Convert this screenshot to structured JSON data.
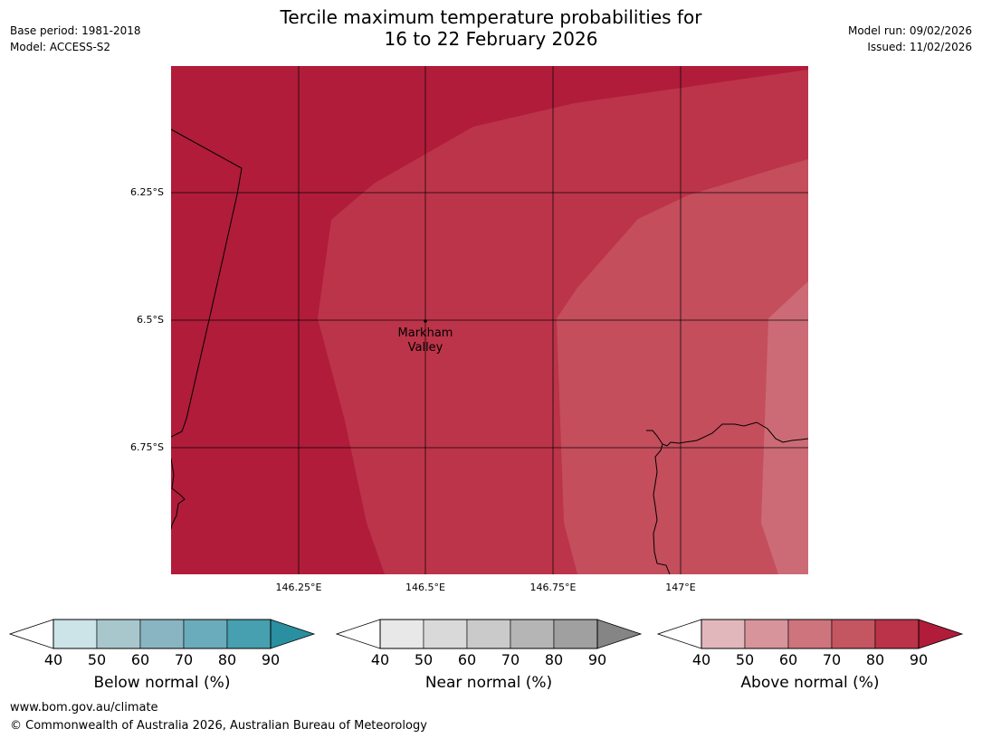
{
  "header": {
    "title_line1": "Tercile maximum temperature probabilities for",
    "title_line2": "16 to 22 February 2026",
    "base_period": "Base period: 1981-2018",
    "model": "Model: ACCESS-S2",
    "model_run": "Model run: 09/02/2026",
    "issued": "Issued: 11/02/2026"
  },
  "map": {
    "lat_labels": [
      "6.25°S",
      "6.5°S",
      "6.75°S"
    ],
    "lon_labels": [
      "146.25°E",
      "146.5°E",
      "146.75°E",
      "147°E"
    ],
    "place": {
      "name_line1": "Markham",
      "name_line2": "Valley"
    },
    "colors": {
      "band_90": "#b01c3a",
      "band_80": "#bc3449",
      "band_70": "#c44e5c",
      "band_60": "#cc6b76"
    }
  },
  "legends": [
    {
      "label": "Below normal (%)",
      "ticks": [
        "40",
        "50",
        "60",
        "70",
        "80",
        "90"
      ],
      "colors": [
        "#cce3e8",
        "#a8c7cd",
        "#89b5c2",
        "#6aacbb",
        "#46a0af",
        "#2a8fa0"
      ]
    },
    {
      "label": "Near normal (%)",
      "ticks": [
        "40",
        "50",
        "60",
        "70",
        "80",
        "90"
      ],
      "colors": [
        "#e8e8e8",
        "#d9d9d9",
        "#cacaca",
        "#b5b5b5",
        "#a0a0a0",
        "#858585"
      ]
    },
    {
      "label": "Above normal (%)",
      "ticks": [
        "40",
        "50",
        "60",
        "70",
        "80",
        "90"
      ],
      "colors": [
        "#e2b7bc",
        "#d8949b",
        "#ce747d",
        "#c45662",
        "#bb3348",
        "#b01c3a"
      ]
    }
  ],
  "footer": {
    "url": "www.bom.gov.au/climate",
    "copyright": "© Commonwealth of Australia 2026, Australian Bureau of Meteorology"
  }
}
